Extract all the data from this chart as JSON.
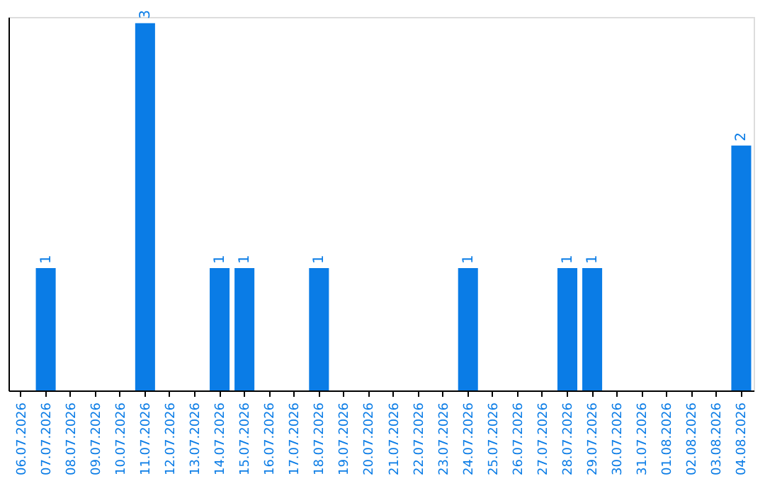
{
  "chart_data": {
    "type": "bar",
    "categories": [
      "06.07.2026",
      "07.07.2026",
      "08.07.2026",
      "09.07.2026",
      "10.07.2026",
      "11.07.2026",
      "12.07.2026",
      "13.07.2026",
      "14.07.2026",
      "15.07.2026",
      "16.07.2026",
      "17.07.2026",
      "18.07.2026",
      "19.07.2026",
      "20.07.2026",
      "21.07.2026",
      "22.07.2026",
      "23.07.2026",
      "24.07.2026",
      "25.07.2026",
      "26.07.2026",
      "27.07.2026",
      "28.07.2026",
      "29.07.2026",
      "30.07.2026",
      "31.07.2026",
      "01.08.2026",
      "02.08.2026",
      "03.08.2026",
      "04.08.2026"
    ],
    "values": [
      0,
      1,
      0,
      0,
      0,
      3,
      0,
      0,
      1,
      1,
      0,
      0,
      1,
      0,
      0,
      0,
      0,
      0,
      1,
      0,
      0,
      0,
      1,
      1,
      0,
      0,
      0,
      0,
      0,
      2
    ],
    "value_labels": [
      null,
      "1",
      null,
      null,
      null,
      "3",
      null,
      null,
      "1",
      "1",
      null,
      null,
      "1",
      null,
      null,
      null,
      null,
      null,
      "1",
      null,
      null,
      null,
      "1",
      "1",
      null,
      null,
      null,
      null,
      null,
      "2"
    ],
    "color": "#0a7ce6",
    "ylim": [
      0,
      3.05
    ],
    "tick_labels": "x",
    "grid": false
  }
}
